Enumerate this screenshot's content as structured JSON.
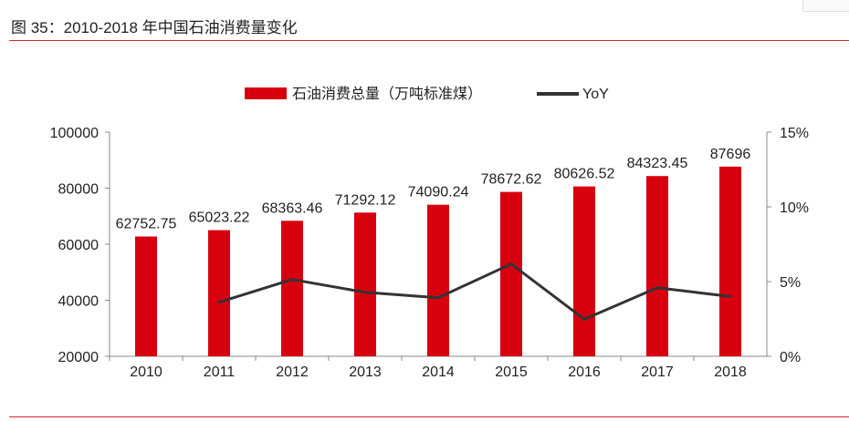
{
  "title": "图 35：2010-2018 年中国石油消费量变化",
  "chart_data": {
    "type": "bar+line",
    "categories": [
      "2010",
      "2011",
      "2012",
      "2013",
      "2014",
      "2015",
      "2016",
      "2017",
      "2018"
    ],
    "series": [
      {
        "name": "石油消费总量（万吨标准煤）",
        "type": "bar",
        "axis": "left",
        "color": "#d7000f",
        "values": [
          62752.75,
          65023.22,
          68363.46,
          71292.12,
          74090.24,
          78672.62,
          80626.52,
          84323.45,
          87696
        ],
        "labels": [
          "62752.75",
          "65023.22",
          "68363.46",
          "71292.12",
          "74090.24",
          "78672.62",
          "80626.52",
          "84323.45",
          "87696"
        ]
      },
      {
        "name": "YoY",
        "type": "line",
        "axis": "right",
        "color": "#333333",
        "values": [
          null,
          3.62,
          5.14,
          4.28,
          3.92,
          6.18,
          2.48,
          4.59,
          4.0
        ]
      }
    ],
    "ylim": [
      20000,
      100000
    ],
    "yticks": [
      "20000",
      "40000",
      "60000",
      "80000",
      "100000"
    ],
    "y2lim": [
      0,
      15
    ],
    "y2ticks": [
      "0%",
      "5%",
      "10%",
      "15%"
    ],
    "legend": "top",
    "grid": false
  }
}
